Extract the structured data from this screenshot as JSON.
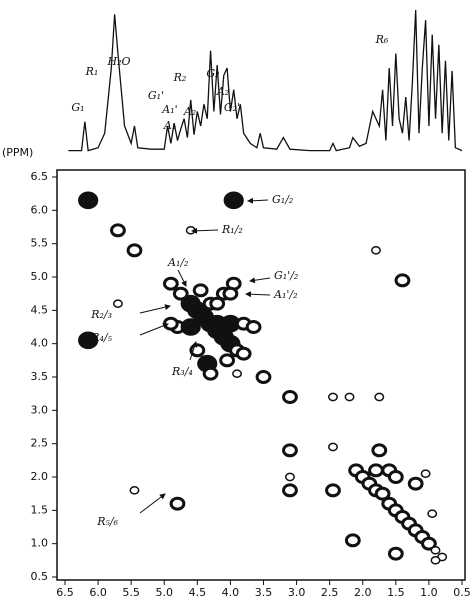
{
  "chart_data": [
    {
      "type": "line",
      "y_label": "(PPM)",
      "color": "#111111",
      "xlim": [
        6.5,
        0.5
      ],
      "x": [
        6.45,
        6.25,
        6.2,
        6.15,
        6.0,
        5.9,
        5.8,
        5.75,
        5.7,
        5.6,
        5.5,
        5.45,
        5.4,
        5.2,
        5.0,
        4.95,
        4.9,
        4.85,
        4.8,
        4.75,
        4.7,
        4.65,
        4.6,
        4.55,
        4.5,
        4.45,
        4.4,
        4.35,
        4.3,
        4.25,
        4.2,
        4.15,
        4.1,
        4.05,
        4.0,
        3.95,
        3.9,
        3.85,
        3.8,
        3.7,
        3.6,
        3.55,
        3.5,
        3.3,
        3.2,
        3.1,
        2.8,
        2.5,
        2.45,
        2.4,
        2.2,
        2.15,
        2.05,
        1.95,
        1.85,
        1.75,
        1.7,
        1.65,
        1.6,
        1.55,
        1.5,
        1.45,
        1.4,
        1.35,
        1.3,
        1.25,
        1.2,
        1.15,
        1.1,
        1.05,
        1.0,
        0.95,
        0.9,
        0.85,
        0.8,
        0.75,
        0.7,
        0.65,
        0.6,
        0.5
      ],
      "values": [
        3,
        3,
        23,
        3,
        5,
        15,
        60,
        97,
        70,
        20,
        8,
        20,
        5,
        4,
        4,
        20,
        8,
        22,
        10,
        18,
        25,
        12,
        38,
        14,
        30,
        20,
        35,
        25,
        72,
        30,
        62,
        28,
        55,
        60,
        30,
        45,
        25,
        35,
        15,
        8,
        5,
        15,
        5,
        4,
        12,
        4,
        3,
        3,
        8,
        3,
        5,
        12,
        6,
        8,
        30,
        20,
        45,
        10,
        60,
        20,
        70,
        25,
        15,
        40,
        10,
        50,
        100,
        15,
        60,
        93,
        20,
        83,
        25,
        76,
        15,
        65,
        10,
        58,
        5,
        3
      ],
      "annotations": [
        "G₁",
        "R₁",
        "H₂O",
        "G₁'",
        "A₁'",
        "A₁",
        "A₂",
        "R₂",
        "G₂",
        "A₂",
        "G₂'",
        "R₆"
      ]
    },
    {
      "type": "scatter",
      "color": "#111111",
      "xlim": [
        6.5,
        0.5
      ],
      "ylim": [
        0.5,
        6.5
      ],
      "xticks": [
        {
          "value": 6.5,
          "label": "6.5"
        },
        {
          "value": 6,
          "label": "6.0"
        },
        {
          "value": 5.5,
          "label": "5.5"
        },
        {
          "value": 5,
          "label": "5.0"
        },
        {
          "value": 4.5,
          "label": "4.5"
        },
        {
          "value": 4,
          "label": "4.0"
        },
        {
          "value": 3.5,
          "label": "3.5"
        },
        {
          "value": 3,
          "label": "3.0"
        },
        {
          "value": 2.5,
          "label": "2.5"
        },
        {
          "value": 2,
          "label": "2.0"
        },
        {
          "value": 1.5,
          "label": "1.5"
        },
        {
          "value": 1,
          "label": "1.0"
        },
        {
          "value": 0.5,
          "label": "0.5"
        }
      ],
      "yticks": [
        {
          "value": 6.5,
          "label": "6.5"
        },
        {
          "value": 6,
          "label": "6.0"
        },
        {
          "value": 5.5,
          "label": "5.5"
        },
        {
          "value": 5,
          "label": "5.0"
        },
        {
          "value": 4.5,
          "label": "4.5"
        },
        {
          "value": 4,
          "label": "4.0"
        },
        {
          "value": 3.5,
          "label": "3.5"
        },
        {
          "value": 3,
          "label": "3.0"
        },
        {
          "value": 2.5,
          "label": "2.5"
        },
        {
          "value": 2,
          "label": "2.0"
        },
        {
          "value": 1.5,
          "label": "1.5"
        },
        {
          "value": 1,
          "label": "1.0"
        },
        {
          "value": 0.5,
          "label": "0.5"
        }
      ],
      "x": [
        6.15,
        6.15,
        5.7,
        5.45,
        5.7,
        5.45,
        4.8,
        4.9,
        4.75,
        4.6,
        4.5,
        4.4,
        4.3,
        4.2,
        4.1,
        4.0,
        3.9,
        3.8,
        3.5,
        4.8,
        4.6,
        4.45,
        4.3,
        4.2,
        4.2,
        4.0,
        3.8,
        3.65,
        4.5,
        4.35,
        4.3,
        4.05,
        3.9,
        4.9,
        4.1,
        3.95,
        4.6,
        3.95,
        4.0,
        3.1,
        3.1,
        3.1,
        3.1,
        2.45,
        2.45,
        2.45,
        2.2,
        1.75,
        1.75,
        1.8,
        1.4,
        2.1,
        2.0,
        1.9,
        1.8,
        1.7,
        1.6,
        1.5,
        1.4,
        1.3,
        1.2,
        1.1,
        1.0,
        0.9,
        0.8,
        1.6,
        1.8,
        1.5,
        1.2,
        1.05,
        0.95,
        1.5,
        2.15,
        0.9
      ],
      "values": [
        6.15,
        4.05,
        5.7,
        5.4,
        4.6,
        1.8,
        1.6,
        4.9,
        4.75,
        4.6,
        4.5,
        4.4,
        4.3,
        4.2,
        4.1,
        4.0,
        3.9,
        3.85,
        3.5,
        4.25,
        4.25,
        4.8,
        4.6,
        4.6,
        4.3,
        4.3,
        4.3,
        4.25,
        3.9,
        3.7,
        3.55,
        3.75,
        3.55,
        4.3,
        4.75,
        6.15,
        5.7,
        4.9,
        4.75,
        3.2,
        2.4,
        2.0,
        1.8,
        3.2,
        2.45,
        1.8,
        3.2,
        3.2,
        2.4,
        5.4,
        4.95,
        2.1,
        2.0,
        1.9,
        1.8,
        1.75,
        1.6,
        1.5,
        1.4,
        1.3,
        1.2,
        1.1,
        1.0,
        0.9,
        0.8,
        2.1,
        2.1,
        2.0,
        1.9,
        2.05,
        1.45,
        0.85,
        1.05,
        0.75
      ],
      "sizes": [
        3,
        3,
        2,
        2,
        1,
        1,
        2,
        2,
        2,
        3,
        3,
        3,
        3,
        3,
        3,
        3,
        2,
        2,
        2,
        2,
        3,
        2,
        2,
        2,
        3,
        3,
        2,
        2,
        2,
        3,
        2,
        2,
        1,
        2,
        2,
        3,
        1,
        2,
        2,
        2,
        2,
        1,
        2,
        1,
        1,
        2,
        1,
        1,
        2,
        1,
        2,
        2,
        2,
        2,
        2,
        2,
        2,
        2,
        2,
        2,
        2,
        2,
        2,
        1,
        1,
        2,
        2,
        2,
        2,
        1,
        1,
        2,
        2,
        1
      ],
      "annotations": [
        "G₁/₂",
        "R₁/₂",
        "A₁/₂",
        "G₁'/₂",
        "A₁'/₂",
        "R₂/₃",
        "R₄/₅",
        "R₃/₄",
        "R₅/₆"
      ]
    }
  ]
}
